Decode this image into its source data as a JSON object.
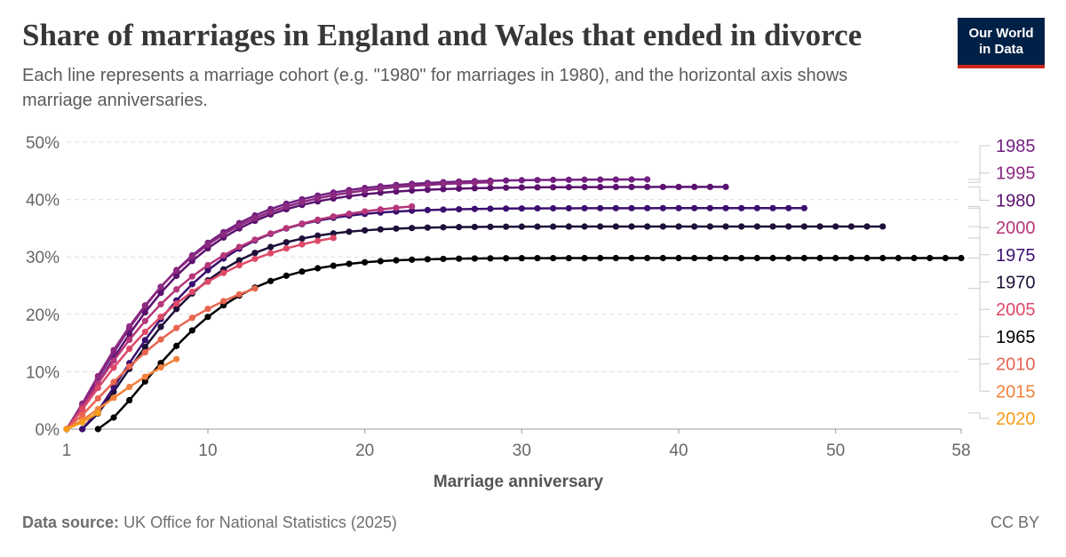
{
  "header": {
    "title": "Share of marriages in England and Wales that ended in divorce",
    "subtitle": "Each line represents a marriage cohort (e.g. \"1980\" for marriages in 1980), and the horizontal axis shows marriage anniversaries."
  },
  "logo": {
    "line1": "Our World",
    "line2": "in Data"
  },
  "footer": {
    "source_label": "Data source:",
    "source_text": "UK Office for National Statistics (2025)",
    "license": "CC BY"
  },
  "chart_data": {
    "type": "line",
    "xlabel": "Marriage anniversary",
    "ylabel": "",
    "xlim": [
      1,
      58
    ],
    "ylim": [
      0,
      50
    ],
    "x_ticks": [
      1,
      10,
      20,
      30,
      40,
      50,
      58
    ],
    "y_ticks": [
      0,
      10,
      20,
      30,
      40,
      50
    ],
    "y_tick_labels": [
      "0%",
      "10%",
      "20%",
      "30%",
      "40%",
      "50%"
    ],
    "grid": "horizontal dashed",
    "legend_placement": "right",
    "series": [
      {
        "name": "1965",
        "color": "#000000",
        "start": 3,
        "end": 58,
        "final": 29.8,
        "k": 0.07,
        "p": 1.4
      },
      {
        "name": "1970",
        "color": "#1d0f38",
        "start": 2,
        "end": 53,
        "final": 35.3,
        "k": 0.08,
        "p": 1.35
      },
      {
        "name": "1975",
        "color": "#3b0f70",
        "start": 2,
        "end": 48,
        "final": 38.5,
        "k": 0.085,
        "p": 1.3
      },
      {
        "name": "1980",
        "color": "#5b126e",
        "start": 1,
        "end": 43,
        "final": 42.2,
        "k": 0.088,
        "p": 1.25
      },
      {
        "name": "1985",
        "color": "#721f81",
        "start": 1,
        "end": 38,
        "final": 43.5,
        "k": 0.098,
        "p": 1.2
      },
      {
        "name": "1995",
        "color": "#8c2981",
        "start": 1,
        "end": 28,
        "final": 43.0,
        "k": 0.108,
        "p": 1.15
      },
      {
        "name": "2000",
        "color": "#b5367a",
        "start": 1,
        "end": 23,
        "final": 38.8,
        "k": 0.1,
        "p": 1.15
      },
      {
        "name": "2005",
        "color": "#de4968",
        "start": 1,
        "end": 18,
        "final": 33.3,
        "k": 0.1,
        "p": 1.15
      },
      {
        "name": "2010",
        "color": "#e8654f",
        "start": 1,
        "end": 13,
        "final": 24.5,
        "k": 0.085,
        "p": 1.2
      },
      {
        "name": "2015",
        "color": "#f1813c",
        "start": 1,
        "end": 8,
        "final": 12.2,
        "k": 0.075,
        "p": 1.25
      },
      {
        "name": "2020",
        "color": "#f99c1a",
        "start": 1,
        "end": 3,
        "final": 2.8,
        "k": 0.07,
        "p": 1.3
      }
    ],
    "legend_order": [
      "1985",
      "1995",
      "1980",
      "2000",
      "1975",
      "1970",
      "2005",
      "1965",
      "2010",
      "2015",
      "2020"
    ]
  }
}
